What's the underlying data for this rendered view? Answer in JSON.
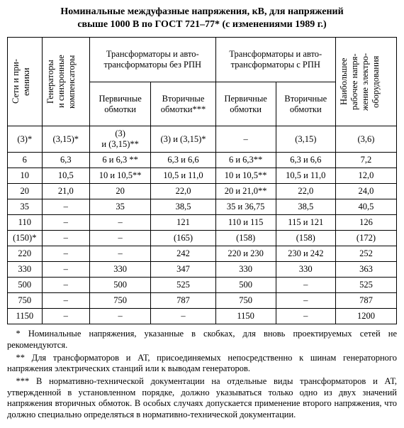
{
  "title_line1": "Номинальные междуфазные напряжения, кВ, для напряжений",
  "title_line2": "свыше 1000 В по ГОСТ 721–77* (с изменениями 1989 г.)",
  "headers": {
    "col1": "Сети и при-\nемники",
    "col2": "Генераторы\nи синхронные\nкомпенсаторы",
    "group1": "Трансформаторы и авто-\nтрансформаторы без РПН",
    "group2": "Трансформаторы и авто-\nтрансформаторы с РПН",
    "prim": "Первичные\nобмотки",
    "sec_no_rnp": "Вторичные\nобмотки***",
    "sec_rnp": "Вторичные\nобмотки",
    "col7": "Наибольшее\nрабочее напря-\nжение электро-\nоборудования"
  },
  "rows": [
    [
      "(3)*",
      "(3,15)*",
      "(3)\nи (3,15)**",
      "(3) и (3,15)*",
      "–",
      "(3,15)",
      "(3,6)"
    ],
    [
      "6",
      "6,3",
      "6 и 6,3 **",
      "6,3 и 6,6",
      "6 и 6,3**",
      "6,3 и 6,6",
      "7,2"
    ],
    [
      "10",
      "10,5",
      "10 и 10,5**",
      "10,5 и 11,0",
      "10 и 10,5**",
      "10,5 и 11,0",
      "12,0"
    ],
    [
      "20",
      "21,0",
      "20",
      "22,0",
      "20 и 21,0**",
      "22,0",
      "24,0"
    ],
    [
      "35",
      "–",
      "35",
      "38,5",
      "35 и 36,75",
      "38,5",
      "40,5"
    ],
    [
      "110",
      "–",
      "–",
      "121",
      "110 и 115",
      "115 и 121",
      "126"
    ],
    [
      "(150)*",
      "–",
      "–",
      "(165)",
      "(158)",
      "(158)",
      "(172)"
    ],
    [
      "220",
      "–",
      "–",
      "242",
      "220 и 230",
      "230 и 242",
      "252"
    ],
    [
      "330",
      "–",
      "330",
      "347",
      "330",
      "330",
      "363"
    ],
    [
      "500",
      "–",
      "500",
      "525",
      "500",
      "–",
      "525"
    ],
    [
      "750",
      "–",
      "750",
      "787",
      "750",
      "–",
      "787"
    ],
    [
      "1150",
      "–",
      "–",
      "–",
      "1150",
      "–",
      "1200"
    ]
  ],
  "footnotes": [
    "* Номинальные напряжения, указанные в скобках, для вновь проектируемых сетей не рекомендуются.",
    "** Для трансформаторов и АТ, присоединяемых непосредственно к шинам генераторного напряжения электрических станций или к выводам генераторов.",
    "*** В нормативно-технической документации на отдельные виды трансформаторов и АТ, утвержденной в установленном порядке, должно указываться только одно из двух значений напряжения вторичных обмоток. В особых случаях допускается применение второго напряжения, что должно специально определяться в нормативно-технической документации."
  ]
}
